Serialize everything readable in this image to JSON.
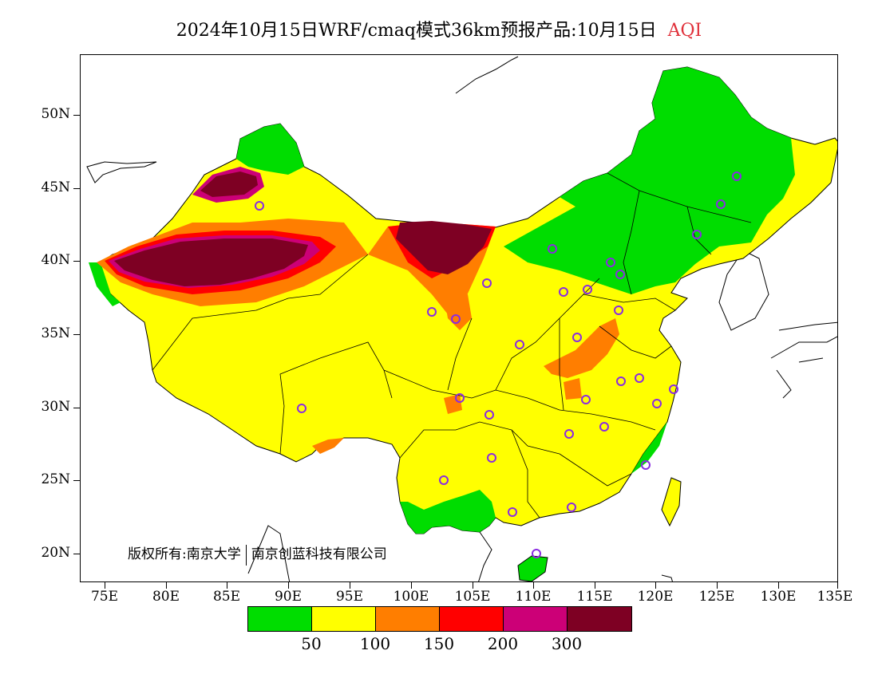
{
  "title": {
    "main": "2024年10月15日WRF/cmaq模式36km预报产品:10月15日",
    "variable": "AQI"
  },
  "colors": {
    "good": "#00dd00",
    "moderate": "#ffff00",
    "light": "#ff7e00",
    "medium": "#ff0000",
    "heavy": "#cc0077",
    "severe": "#7e0023",
    "station_marker": "#8a2be2",
    "accent": "#e0303a"
  },
  "axes": {
    "y_labels": [
      "50N",
      "45N",
      "40N",
      "35N",
      "30N",
      "25N",
      "20N"
    ],
    "x_labels": [
      "75E",
      "80E",
      "85E",
      "90E",
      "95E",
      "100E",
      "105E",
      "110E",
      "115E",
      "120E",
      "125E",
      "130E",
      "135E"
    ]
  },
  "copyright": {
    "left": "版权所有:南京大学",
    "right": "南京创蓝科技有限公司"
  },
  "legend": {
    "labels": [
      "50",
      "100",
      "150",
      "200",
      "300"
    ]
  }
}
